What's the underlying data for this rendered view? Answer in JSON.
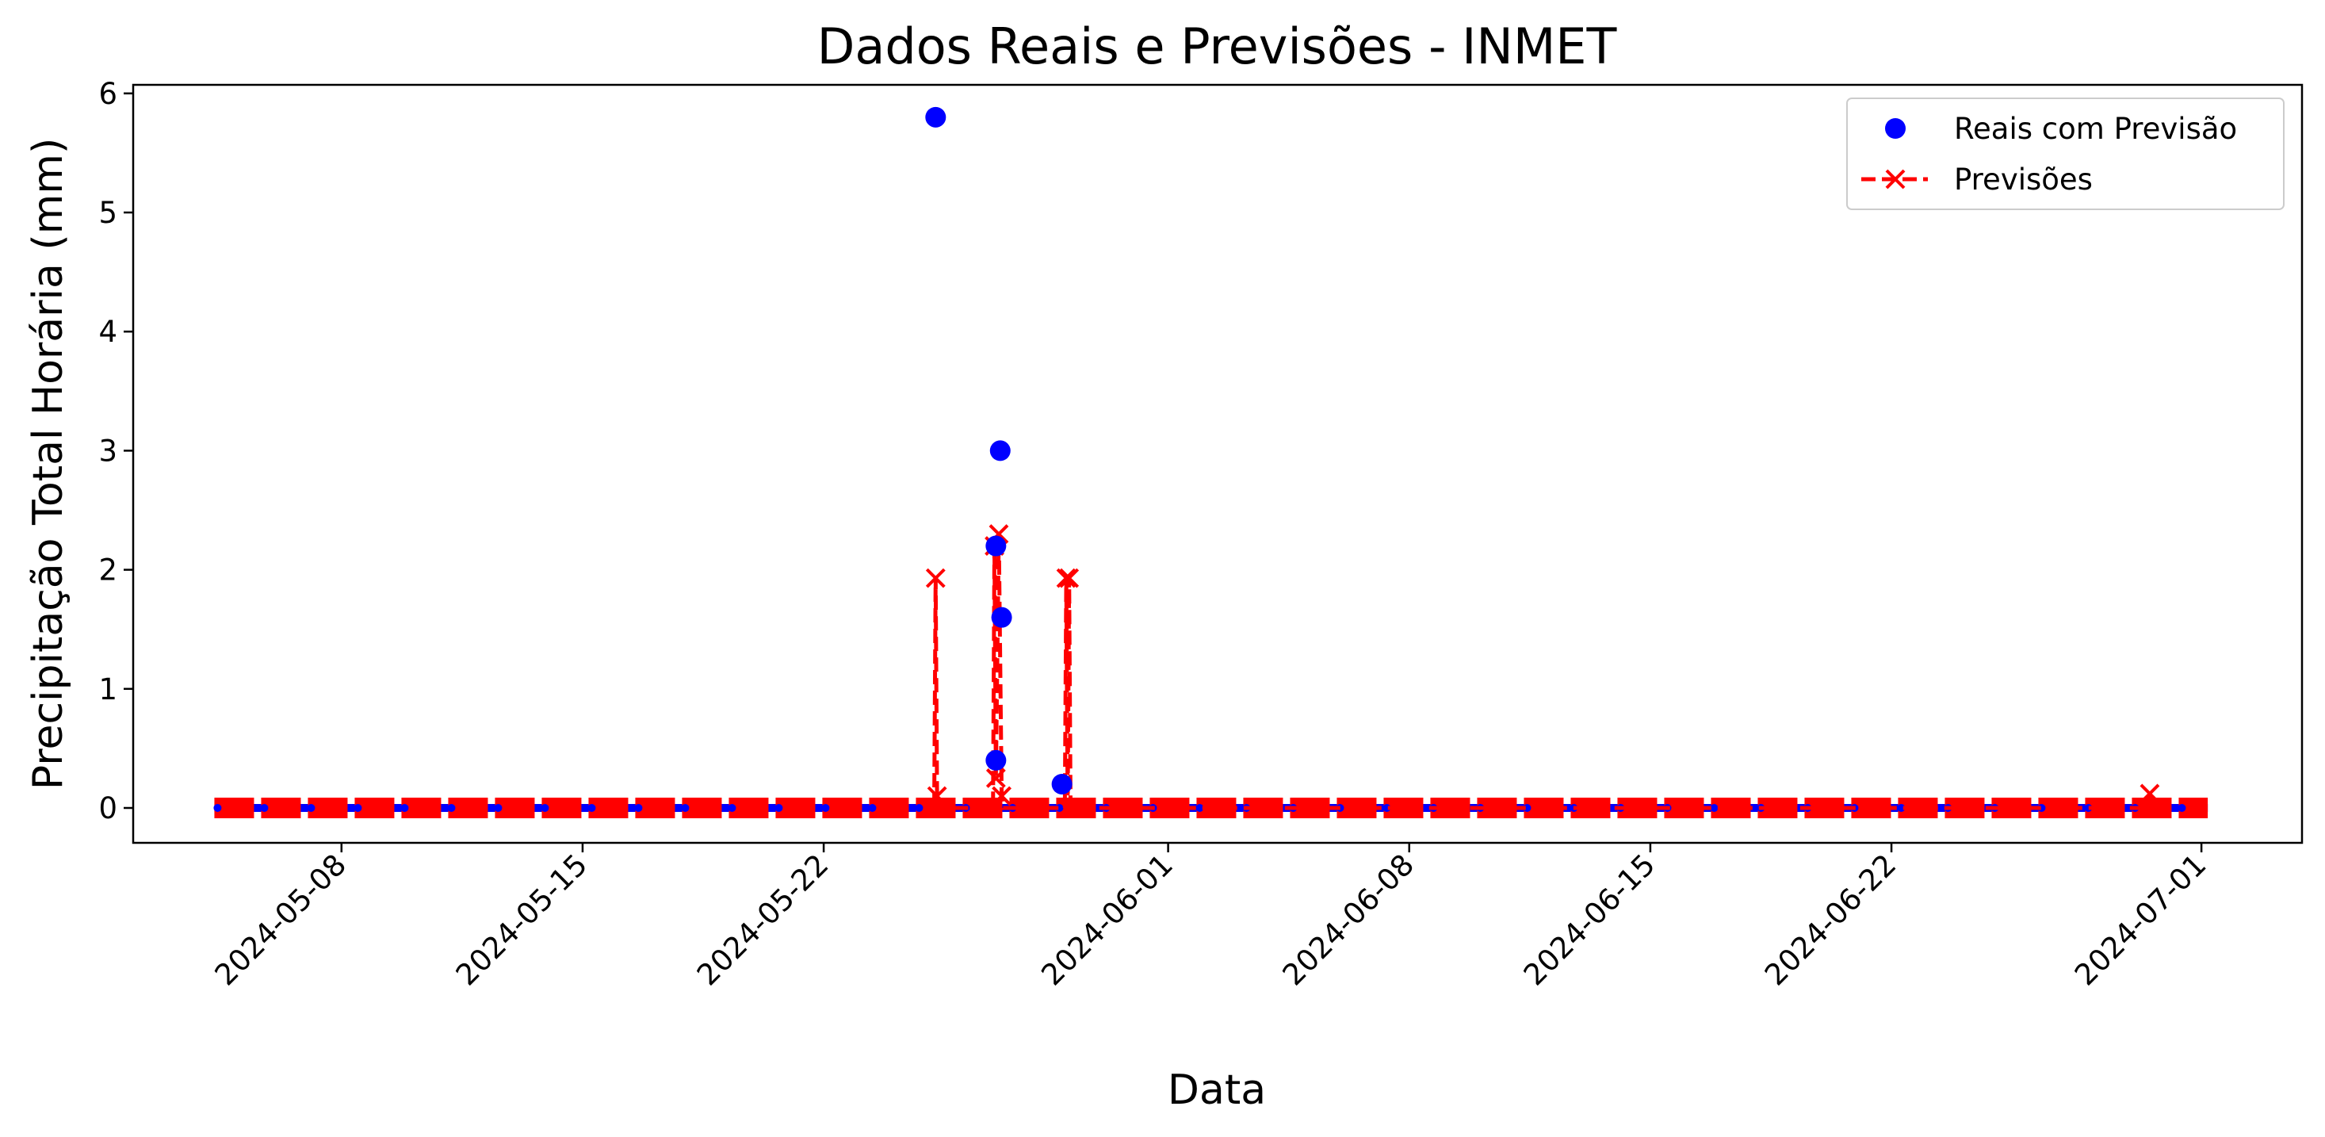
{
  "chart_data": {
    "type": "line",
    "title": "Dados Reais e Previsões - INMET",
    "xlabel": "Data",
    "ylabel": "Precipitação Total Horária (mm)",
    "x_range": [
      "2024-05-04",
      "2024-07-03"
    ],
    "ylim": [
      -0.3,
      6.1
    ],
    "x_ticks": [
      "2024-05-08",
      "2024-05-15",
      "2024-05-22",
      "2024-06-01",
      "2024-06-08",
      "2024-06-15",
      "2024-06-22",
      "2024-07-01"
    ],
    "y_ticks": [
      "0",
      "1",
      "2",
      "3",
      "4",
      "5",
      "6"
    ],
    "grid": false,
    "legend_position": "top-right",
    "baseline_value": 0,
    "baseline_range": [
      "2024-05-05",
      "2024-07-01"
    ],
    "series": [
      {
        "name": "Reais com Previsão",
        "style": "markers",
        "marker": "circle",
        "color": "#0000ff",
        "points": [
          {
            "x": "2024-05-25 06:00",
            "y": 5.8
          },
          {
            "x": "2024-05-27 00:00",
            "y": 2.2
          },
          {
            "x": "2024-05-27 00:00",
            "y": 0.4
          },
          {
            "x": "2024-05-27 03:00",
            "y": 3.0
          },
          {
            "x": "2024-05-27 04:00",
            "y": 1.6
          },
          {
            "x": "2024-05-28 22:00",
            "y": 0.2
          }
        ]
      },
      {
        "name": "Previsões",
        "style": "dashed-line",
        "marker": "x",
        "color": "#ff0000",
        "points": [
          {
            "x": "2024-05-25 05:00",
            "y": 0
          },
          {
            "x": "2024-05-25 06:00",
            "y": 1.93
          },
          {
            "x": "2024-05-25 07:00",
            "y": 0.1
          },
          {
            "x": "2024-05-25 09:00",
            "y": 0
          },
          {
            "x": "2024-05-26 22:00",
            "y": 0
          },
          {
            "x": "2024-05-26 23:00",
            "y": 2.2
          },
          {
            "x": "2024-05-27 00:00",
            "y": 0.25
          },
          {
            "x": "2024-05-27 02:00",
            "y": 2.3
          },
          {
            "x": "2024-05-27 04:00",
            "y": 0.1
          },
          {
            "x": "2024-05-27 05:00",
            "y": 0
          },
          {
            "x": "2024-05-29 00:00",
            "y": 0
          },
          {
            "x": "2024-05-29 01:00",
            "y": 1.93
          },
          {
            "x": "2024-05-29 02:00",
            "y": 0
          },
          {
            "x": "2024-05-29 03:00",
            "y": 1.93
          },
          {
            "x": "2024-05-29 04:00",
            "y": 0
          },
          {
            "x": "2024-06-29 11:00",
            "y": 0
          },
          {
            "x": "2024-06-29 12:00",
            "y": 0.12
          },
          {
            "x": "2024-06-29 13:00",
            "y": 0
          }
        ]
      }
    ]
  }
}
